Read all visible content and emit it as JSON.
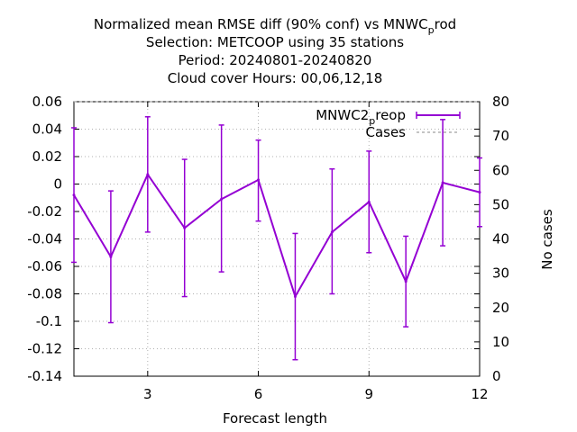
{
  "chart_data": {
    "type": "line",
    "title_lines": [
      "Normalized mean RMSE diff (90% conf) vs MNWC_prod",
      "Selection: METCOOP using    35 stations",
      "Period: 20240801-20240820",
      "Cloud cover   Hours:  00,06,12,18"
    ],
    "title_main": "Normalized mean RMSE diff (90% conf) vs MNWC",
    "title_sub": "p",
    "title_tail": "rod",
    "xlabel": "Forecast length",
    "y2label": "No cases",
    "xlim": [
      1,
      12
    ],
    "ylim": [
      -0.14,
      0.06
    ],
    "y2lim": [
      0,
      80
    ],
    "x_ticks": [
      3,
      6,
      9,
      12
    ],
    "y_ticks": [
      -0.14,
      -0.12,
      -0.1,
      -0.08,
      -0.06,
      -0.04,
      -0.02,
      0,
      0.02,
      0.04,
      0.06
    ],
    "y_tick_labels": [
      "-0.14",
      "-0.12",
      "-0.1",
      "-0.08",
      "-0.06",
      "-0.04",
      "-0.02",
      "0",
      "0.02",
      "0.04",
      "0.06"
    ],
    "y2_ticks": [
      0,
      10,
      20,
      30,
      40,
      50,
      60,
      70,
      80
    ],
    "grid": true,
    "legend_position": "top-right",
    "series": [
      {
        "name": "MNWC2_preop",
        "name_main": "MNWC2",
        "name_sub": "p",
        "name_tail": "reop",
        "color": "#9400d3",
        "x": [
          1,
          2,
          3,
          4,
          5,
          6,
          7,
          8,
          9,
          10,
          11,
          12
        ],
        "y": [
          -0.008,
          -0.053,
          0.007,
          -0.032,
          -0.011,
          0.003,
          -0.082,
          -0.035,
          -0.013,
          -0.071,
          0.001,
          -0.006
        ],
        "err_low": [
          -0.057,
          -0.101,
          -0.035,
          -0.082,
          -0.064,
          -0.027,
          -0.128,
          -0.08,
          -0.05,
          -0.104,
          -0.045,
          -0.031
        ],
        "err_high": [
          0.041,
          -0.005,
          0.049,
          0.018,
          0.043,
          0.032,
          -0.036,
          0.011,
          0.024,
          -0.038,
          0.047,
          0.019
        ]
      },
      {
        "name": "Cases",
        "axis": "y2",
        "color": "#a0a0a0",
        "x": [
          1,
          2,
          3,
          4,
          5,
          6,
          7,
          8,
          9,
          10,
          11,
          12
        ],
        "y": [
          80,
          80,
          80,
          80,
          80,
          80,
          80,
          80,
          80,
          80,
          80,
          80
        ]
      }
    ]
  }
}
